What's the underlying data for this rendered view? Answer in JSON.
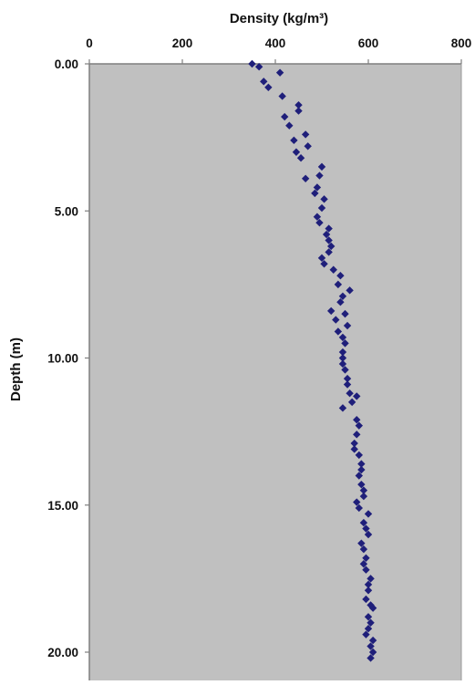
{
  "chart_data": {
    "type": "scatter",
    "title": "",
    "xlabel": "Density (kg/m³)",
    "ylabel": "Depth (m)",
    "xlim": [
      0,
      800
    ],
    "ylim": [
      0,
      20.5
    ],
    "y_inverted": true,
    "x_axis_position": "top",
    "x_ticks": [
      0,
      200,
      400,
      600,
      800
    ],
    "y_ticks": [
      0,
      5,
      10,
      15,
      20
    ],
    "x_tick_labels": [
      "0",
      "200",
      "400",
      "600",
      "800"
    ],
    "y_tick_labels": [
      "0.00",
      "5.00",
      "10.00",
      "15.00",
      "20.00"
    ],
    "plot_background": "#c0c0c0",
    "marker_color": "#1f1f7a",
    "marker_shape": "diamond",
    "grid": false,
    "legend": "none",
    "series": [
      {
        "points": [
          {
            "x": 350,
            "y": 0.0
          },
          {
            "x": 365,
            "y": 0.1
          },
          {
            "x": 410,
            "y": 0.3
          },
          {
            "x": 375,
            "y": 0.6
          },
          {
            "x": 385,
            "y": 0.8
          },
          {
            "x": 415,
            "y": 1.1
          },
          {
            "x": 450,
            "y": 1.4
          },
          {
            "x": 450,
            "y": 1.6
          },
          {
            "x": 420,
            "y": 1.8
          },
          {
            "x": 430,
            "y": 2.1
          },
          {
            "x": 465,
            "y": 2.4
          },
          {
            "x": 440,
            "y": 2.6
          },
          {
            "x": 470,
            "y": 2.8
          },
          {
            "x": 445,
            "y": 3.0
          },
          {
            "x": 455,
            "y": 3.2
          },
          {
            "x": 500,
            "y": 3.5
          },
          {
            "x": 495,
            "y": 3.8
          },
          {
            "x": 465,
            "y": 3.9
          },
          {
            "x": 490,
            "y": 4.2
          },
          {
            "x": 485,
            "y": 4.4
          },
          {
            "x": 505,
            "y": 4.6
          },
          {
            "x": 500,
            "y": 4.9
          },
          {
            "x": 490,
            "y": 5.2
          },
          {
            "x": 495,
            "y": 5.4
          },
          {
            "x": 515,
            "y": 5.6
          },
          {
            "x": 510,
            "y": 5.8
          },
          {
            "x": 515,
            "y": 6.0
          },
          {
            "x": 520,
            "y": 6.2
          },
          {
            "x": 515,
            "y": 6.4
          },
          {
            "x": 500,
            "y": 6.6
          },
          {
            "x": 505,
            "y": 6.8
          },
          {
            "x": 525,
            "y": 7.0
          },
          {
            "x": 540,
            "y": 7.2
          },
          {
            "x": 535,
            "y": 7.5
          },
          {
            "x": 560,
            "y": 7.7
          },
          {
            "x": 545,
            "y": 7.9
          },
          {
            "x": 540,
            "y": 8.1
          },
          {
            "x": 520,
            "y": 8.4
          },
          {
            "x": 550,
            "y": 8.5
          },
          {
            "x": 530,
            "y": 8.7
          },
          {
            "x": 555,
            "y": 8.9
          },
          {
            "x": 535,
            "y": 9.1
          },
          {
            "x": 545,
            "y": 9.3
          },
          {
            "x": 550,
            "y": 9.5
          },
          {
            "x": 545,
            "y": 9.8
          },
          {
            "x": 545,
            "y": 10.0
          },
          {
            "x": 545,
            "y": 10.2
          },
          {
            "x": 550,
            "y": 10.4
          },
          {
            "x": 555,
            "y": 10.7
          },
          {
            "x": 555,
            "y": 10.9
          },
          {
            "x": 560,
            "y": 11.2
          },
          {
            "x": 575,
            "y": 11.3
          },
          {
            "x": 565,
            "y": 11.5
          },
          {
            "x": 545,
            "y": 11.7
          },
          {
            "x": 575,
            "y": 12.1
          },
          {
            "x": 580,
            "y": 12.3
          },
          {
            "x": 575,
            "y": 12.6
          },
          {
            "x": 570,
            "y": 12.9
          },
          {
            "x": 570,
            "y": 13.1
          },
          {
            "x": 580,
            "y": 13.3
          },
          {
            "x": 585,
            "y": 13.6
          },
          {
            "x": 585,
            "y": 13.8
          },
          {
            "x": 580,
            "y": 14.0
          },
          {
            "x": 585,
            "y": 14.3
          },
          {
            "x": 590,
            "y": 14.5
          },
          {
            "x": 590,
            "y": 14.7
          },
          {
            "x": 575,
            "y": 14.9
          },
          {
            "x": 580,
            "y": 15.1
          },
          {
            "x": 600,
            "y": 15.3
          },
          {
            "x": 590,
            "y": 15.6
          },
          {
            "x": 595,
            "y": 15.8
          },
          {
            "x": 600,
            "y": 16.0
          },
          {
            "x": 585,
            "y": 16.3
          },
          {
            "x": 590,
            "y": 16.5
          },
          {
            "x": 595,
            "y": 16.8
          },
          {
            "x": 590,
            "y": 17.0
          },
          {
            "x": 595,
            "y": 17.2
          },
          {
            "x": 605,
            "y": 17.5
          },
          {
            "x": 600,
            "y": 17.7
          },
          {
            "x": 600,
            "y": 17.9
          },
          {
            "x": 595,
            "y": 18.2
          },
          {
            "x": 605,
            "y": 18.4
          },
          {
            "x": 610,
            "y": 18.5
          },
          {
            "x": 600,
            "y": 18.8
          },
          {
            "x": 605,
            "y": 19.0
          },
          {
            "x": 600,
            "y": 19.2
          },
          {
            "x": 595,
            "y": 19.4
          },
          {
            "x": 610,
            "y": 19.6
          },
          {
            "x": 605,
            "y": 19.8
          },
          {
            "x": 610,
            "y": 20.0
          },
          {
            "x": 605,
            "y": 20.2
          }
        ]
      }
    ]
  }
}
